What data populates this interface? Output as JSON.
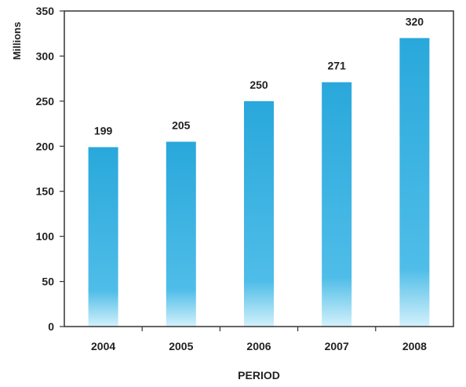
{
  "chart_data": {
    "type": "bar",
    "categories": [
      "2004",
      "2005",
      "2006",
      "2007",
      "2008"
    ],
    "values": [
      199,
      205,
      250,
      271,
      320
    ],
    "data_labels": [
      "199",
      "205",
      "250",
      "271",
      "320"
    ],
    "xlabel": "PERIOD",
    "ylabel": "Millions",
    "ylim": [
      0,
      350
    ],
    "yticks": [
      "0",
      "50",
      "100",
      "150",
      "200",
      "250",
      "300",
      "350"
    ],
    "grid": false,
    "legend": "none",
    "bar_color_top": "#29a8db",
    "bar_color_bottom": "#d3f1fb"
  }
}
